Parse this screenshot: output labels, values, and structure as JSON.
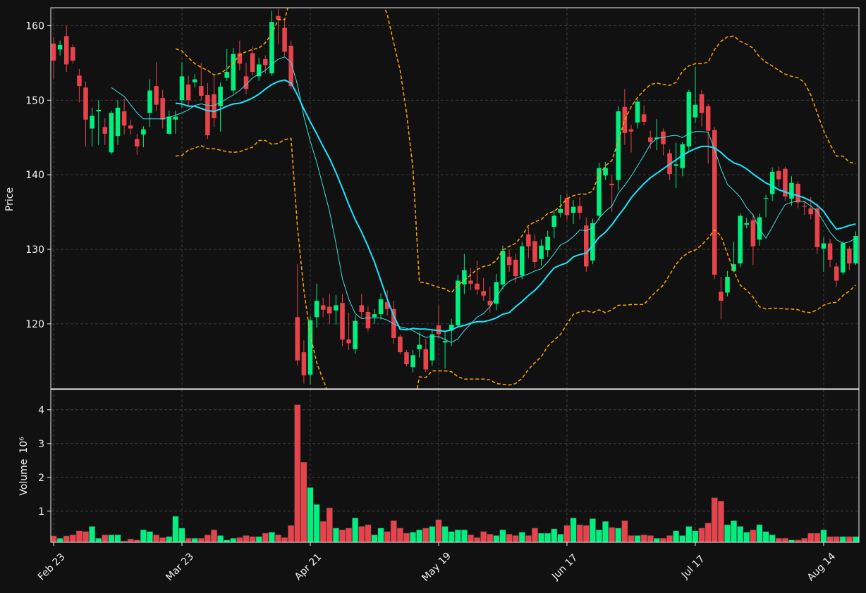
{
  "chart_data": {
    "type": "candlestick",
    "ylabel": "Price",
    "volume_ylabel": "Volume",
    "volume_offset_label": "10⁶",
    "up_color": "#00f07f",
    "down_color": "#e8434b",
    "grid": true,
    "xlim": [
      -0.44,
      125.5
    ],
    "ylim": [
      111.3,
      162.4
    ],
    "yticks": [
      120,
      130,
      140,
      150,
      160
    ],
    "volume_ylim": [
      0.08,
      4.6
    ],
    "volume_yticks": [
      1,
      2,
      3,
      4
    ],
    "categories": [
      "Feb 23",
      null,
      null,
      null,
      null,
      null,
      null,
      null,
      null,
      null,
      null,
      null,
      null,
      null,
      null,
      null,
      null,
      null,
      null,
      null,
      "Mar 23",
      null,
      null,
      null,
      null,
      null,
      null,
      null,
      null,
      null,
      null,
      null,
      null,
      null,
      null,
      null,
      null,
      null,
      null,
      null,
      "Apr 21",
      null,
      null,
      null,
      null,
      null,
      null,
      null,
      null,
      null,
      null,
      null,
      null,
      null,
      null,
      null,
      null,
      null,
      null,
      null,
      "May 19",
      null,
      null,
      null,
      null,
      null,
      null,
      null,
      null,
      null,
      null,
      null,
      null,
      null,
      null,
      null,
      null,
      null,
      null,
      null,
      "Jun 17",
      null,
      null,
      null,
      null,
      null,
      null,
      null,
      null,
      null,
      null,
      null,
      null,
      null,
      null,
      null,
      null,
      null,
      null,
      null,
      "Jul 17",
      null,
      null,
      null,
      null,
      null,
      null,
      null,
      null,
      null,
      null,
      null,
      null,
      null,
      null,
      null,
      null,
      null,
      null,
      null,
      "Aug 14",
      null,
      null,
      null,
      null,
      null
    ],
    "open": [
      157.6,
      156.8,
      158.6,
      157.1,
      153.3,
      151.7,
      146.2,
      148.5,
      146.4,
      143.0,
      145.2,
      148.5,
      146.6,
      144.8,
      145.4,
      148.3,
      151.9,
      150.3,
      145.5,
      147.4,
      150.0,
      152.1,
      152.4,
      151.9,
      150.7,
      150.8,
      149.2,
      153.0,
      151.3,
      156.3,
      153.2,
      156.3,
      153.2,
      155.5,
      153.6,
      161.3,
      159.7,
      157.3,
      120.9,
      116.2,
      113.2,
      120.9,
      122.5,
      122.3,
      121.8,
      122.8,
      117.9,
      116.6,
      122.5,
      121.6,
      120.9,
      121.3,
      122.9,
      122.0,
      118.3,
      116.2,
      114.2,
      116.6,
      116.6,
      115.1,
      119.8,
      117.5,
      119.1,
      119.8,
      125.3,
      125.8,
      125.4,
      124.4,
      123.1,
      122.7,
      125.3,
      129.0,
      128.6,
      126.5,
      132.0,
      131.1,
      128.7,
      129.9,
      133.0,
      134.9,
      136.9,
      134.9,
      135.8,
      133.2,
      128.5,
      134.5,
      139.9,
      138.8,
      139.3,
      149.1,
      146.1,
      147.0,
      148.1,
      145.0,
      144.8,
      145.8,
      142.9,
      141.2,
      140.9,
      143.8,
      147.7,
      150.8,
      149.2,
      146.0,
      124.3,
      124.2,
      127.1,
      128.1,
      133.3,
      133.9,
      131.3,
      136.8,
      137.4,
      140.5,
      140.8,
      136.8,
      138.8,
      135.8,
      135.5,
      135.5,
      130.1,
      130.8,
      127.7,
      126.9,
      130.1,
      128.1
    ],
    "high": [
      158.5,
      158,
      160,
      157.5,
      154.2,
      152.5,
      149,
      150,
      147.6,
      148.6,
      150,
      150.2,
      147.4,
      145.5,
      146.5,
      152.8,
      155.1,
      151.4,
      148.6,
      148.6,
      155.1,
      153.3,
      153.5,
      155,
      152.3,
      153.3,
      152.4,
      156.9,
      157,
      158,
      155,
      157.2,
      155.7,
      156,
      162,
      162.2,
      160.8,
      158,
      128,
      117.8,
      121,
      125.4,
      123.5,
      124,
      123.9,
      124,
      121.5,
      121.2,
      124,
      122.3,
      122,
      124.1,
      124.5,
      123.1,
      118.6,
      116.5,
      116.5,
      118.9,
      118,
      119.3,
      122.4,
      119,
      120.7,
      126.6,
      129.4,
      127.5,
      128.5,
      126.2,
      125,
      126.7,
      130.5,
      130,
      129.4,
      131,
      133,
      132,
      131.3,
      132.5,
      135.3,
      137.3,
      137.5,
      136.6,
      137,
      134.3,
      134.1,
      141.6,
      141.7,
      140,
      149.2,
      151.5,
      146.7,
      150.1,
      149.3,
      145.9,
      147.5,
      146.2,
      143.4,
      144.3,
      144.4,
      151.4,
      154.5,
      151.4,
      149.5,
      146.4,
      126.3,
      127.1,
      131,
      134.8,
      134.2,
      134.8,
      134.8,
      137.3,
      141,
      141.1,
      141.1,
      139.8,
      139.1,
      136.3,
      137,
      136.2,
      131.6,
      131.4,
      128.2,
      131.1,
      130.4,
      132.4
    ],
    "low": [
      152.8,
      156,
      153.8,
      154.9,
      149.7,
      143.8,
      143.8,
      144,
      144,
      142.7,
      144,
      145.4,
      145.4,
      142.7,
      143.7,
      146.4,
      148.5,
      146.2,
      145.4,
      145.5,
      149,
      149.1,
      151.7,
      150,
      144.8,
      146.4,
      145.8,
      152.6,
      150.9,
      154,
      150.8,
      153.3,
      152.6,
      153.6,
      153.3,
      157.5,
      155.9,
      151.5,
      114.4,
      112,
      111.9,
      119.5,
      120.9,
      120,
      119.9,
      117,
      116.5,
      116,
      120.7,
      119,
      120,
      120.6,
      121.1,
      117.3,
      115.9,
      114.3,
      113.5,
      115.5,
      113.5,
      114.4,
      118,
      114,
      117,
      119.5,
      124,
      124.5,
      123.9,
      123.1,
      121.5,
      121.8,
      124.6,
      127,
      125.5,
      126,
      128.8,
      127.5,
      127.8,
      129,
      131.5,
      134.3,
      134,
      133.4,
      134,
      127,
      128,
      133.8,
      139.3,
      135,
      137.9,
      144,
      143,
      146.2,
      146.6,
      143.5,
      143.3,
      142.6,
      139.3,
      138.2,
      139.8,
      143.2,
      147,
      146.5,
      141.5,
      126,
      120.6,
      123.7,
      126.9,
      127.6,
      132.8,
      127.9,
      130.5,
      134.3,
      136.5,
      138.4,
      136.5,
      135.9,
      135.5,
      134.6,
      134,
      129.4,
      127,
      127.6,
      125,
      126.6,
      127.2,
      127.9
    ],
    "close": [
      155.3,
      157.4,
      154.8,
      155.3,
      151.9,
      147.4,
      147.9,
      148.7,
      145.5,
      148.3,
      149.0,
      146.6,
      146.2,
      143.8,
      146.1,
      151.3,
      149.4,
      147.4,
      147.8,
      147.8,
      153.2,
      150.0,
      152.8,
      150.6,
      145.3,
      147.6,
      151.8,
      153.8,
      156.2,
      154.9,
      151.5,
      153.8,
      154.8,
      154.7,
      160.5,
      160.8,
      156.5,
      151.9,
      115.1,
      113.1,
      120.5,
      123.1,
      121.9,
      121.4,
      122.5,
      117.9,
      117.4,
      120.4,
      121.6,
      119.4,
      121.3,
      123.3,
      122.0,
      118.1,
      116.2,
      114.6,
      115.8,
      117.2,
      113.9,
      118.6,
      118.6,
      117.7,
      119.9,
      125.8,
      127.2,
      125.4,
      124.6,
      123.8,
      122.5,
      125.6,
      129.8,
      127.9,
      126.4,
      130.4,
      130.4,
      128.3,
      130.5,
      131.7,
      134.5,
      135.4,
      134.6,
      135.7,
      134.9,
      127.7,
      133.5,
      140.9,
      140.9,
      138.6,
      148.5,
      145.6,
      145.8,
      149.8,
      147.1,
      144.4,
      145.0,
      144.1,
      140.1,
      141.4,
      144.1,
      151.1,
      149.4,
      148.3,
      145.9,
      126.6,
      123.1,
      126.3,
      128.0,
      134.5,
      133.5,
      130.4,
      134.3,
      136.9,
      140.4,
      139.4,
      137.1,
      138.9,
      136.3,
      135.7,
      134.7,
      130.3,
      130.8,
      128.6,
      125.8,
      130.8,
      128.1,
      131.8
    ],
    "volume": [
      0.27,
      0.2,
      0.27,
      0.3,
      0.42,
      0.4,
      0.55,
      0.2,
      0.3,
      0.3,
      0.3,
      0.12,
      0.18,
      0.15,
      0.45,
      0.4,
      0.3,
      0.22,
      0.25,
      0.85,
      0.5,
      0.2,
      0.2,
      0.2,
      0.3,
      0.45,
      0.28,
      0.15,
      0.2,
      0.22,
      0.28,
      0.25,
      0.25,
      0.35,
      0.38,
      0.3,
      0.22,
      0.58,
      4.15,
      2.45,
      1.7,
      1.2,
      0.7,
      1.1,
      0.5,
      0.45,
      0.5,
      0.8,
      0.55,
      0.6,
      0.3,
      0.5,
      0.4,
      0.72,
      0.5,
      0.35,
      0.38,
      0.45,
      0.5,
      0.55,
      0.75,
      0.55,
      0.4,
      0.45,
      0.45,
      0.3,
      0.22,
      0.4,
      0.32,
      0.28,
      0.45,
      0.32,
      0.28,
      0.38,
      0.28,
      0.5,
      0.35,
      0.35,
      0.48,
      0.32,
      0.58,
      0.8,
      0.6,
      0.58,
      0.78,
      0.45,
      0.7,
      0.52,
      0.5,
      0.72,
      0.28,
      0.28,
      0.3,
      0.28,
      0.2,
      0.2,
      0.28,
      0.42,
      0.28,
      0.55,
      0.42,
      0.5,
      0.65,
      1.4,
      1.3,
      0.6,
      0.72,
      0.55,
      0.38,
      0.45,
      0.6,
      0.4,
      0.3,
      0.2,
      0.2,
      0.15,
      0.15,
      0.2,
      0.35,
      0.35,
      0.45,
      0.25,
      0.25,
      0.25,
      0.25,
      0.25
    ],
    "overlays": [
      {
        "color": "#40e0e0",
        "linewidth": 1,
        "dashed": false,
        "values": [
          null,
          null,
          null,
          null,
          null,
          null,
          null,
          null,
          null,
          151.7,
          151.1,
          150.5,
          149.4,
          148.3,
          147.5,
          147.5,
          147.5,
          147.5,
          147.7,
          148.0,
          148.3,
          148.7,
          149.3,
          149.5,
          149.3,
          149.3,
          149.7,
          150.2,
          150.7,
          151.3,
          152.1,
          153.0,
          153.5,
          154.0,
          154.8,
          155.5,
          155.8,
          155.1,
          152.1,
          147.8,
          144.5,
          141.7,
          138.4,
          135.1,
          130.8,
          126.1,
          123.3,
          121.4,
          120.7,
          120.8,
          120.8,
          120.8,
          120.5,
          120.0,
          119.6,
          119.4,
          119.1,
          118.6,
          118.2,
          118.3,
          118.3,
          117.9,
          117.5,
          118.0,
          119.1,
          120.0,
          120.9,
          121.4,
          122.3,
          123.6,
          124.9,
          125.7,
          126.1,
          126.4,
          126.7,
          127.1,
          127.4,
          128.3,
          129.4,
          130.6,
          131.0,
          131.7,
          132.6,
          132.5,
          132.9,
          134.2,
          135.1,
          135.8,
          137.5,
          138.6,
          139.8,
          141.2,
          142.6,
          144.1,
          144.9,
          145.0,
          145.2,
          145.3,
          145.0,
          145.5,
          145.8,
          145.8,
          145.7,
          143.4,
          140.8,
          138.7,
          137.9,
          137.0,
          135.6,
          134.6,
          132.7,
          131.5,
          133.0,
          134.6,
          136.0,
          136.3,
          136.5,
          136.4,
          135.8,
          135.1,
          133.7,
          132.3,
          131.3,
          130.8,
          131.0,
          131.5
        ]
      },
      {
        "color": "#19e6ff",
        "linewidth": 2,
        "dashed": false,
        "values": [
          null,
          null,
          null,
          null,
          null,
          null,
          null,
          null,
          null,
          null,
          null,
          null,
          null,
          null,
          null,
          null,
          null,
          null,
          null,
          149.6,
          149.5,
          149.2,
          149.2,
          148.9,
          148.6,
          148.5,
          148.8,
          149.2,
          149.5,
          149.6,
          149.9,
          150.3,
          150.8,
          151.5,
          152.1,
          152.5,
          152.7,
          152.3,
          150.7,
          148.8,
          147.1,
          145.5,
          143.8,
          142.2,
          140.3,
          138.2,
          136.0,
          134.0,
          132.3,
          130.4,
          128.3,
          125.8,
          123.3,
          121.1,
          119.3,
          119.2,
          119.4,
          119.3,
          119.3,
          119.2,
          119.1,
          119.0,
          119.2,
          119.6,
          119.8,
          120.1,
          120.3,
          120.3,
          120.5,
          120.8,
          121.3,
          121.5,
          122.3,
          123.0,
          123.8,
          124.5,
          125.4,
          126.5,
          127.5,
          127.9,
          128.2,
          129.0,
          129.3,
          129.5,
          130.5,
          131.6,
          132.3,
          133.3,
          134.5,
          135.6,
          136.9,
          137.9,
          138.8,
          139.6,
          140.2,
          140.8,
          141.4,
          142.0,
          142.6,
          143.1,
          143.5,
          143.8,
          143.8,
          143.6,
          143.0,
          142.2,
          141.6,
          141.3,
          140.8,
          140.1,
          139.5,
          138.9,
          138.5,
          138.0,
          137.7,
          137.4,
          137.2,
          136.9,
          136.5,
          135.9,
          135.1,
          133.8,
          132.7,
          132.9,
          133.2,
          133.4
        ]
      },
      {
        "color": "#ffa500",
        "linewidth": 1.5,
        "dashed": true,
        "values": [
          null,
          null,
          null,
          null,
          null,
          null,
          null,
          null,
          null,
          null,
          null,
          null,
          null,
          null,
          null,
          null,
          null,
          null,
          null,
          156.9,
          156.6,
          155.7,
          154.9,
          154.4,
          154.0,
          153.4,
          153.6,
          154.2,
          155.0,
          156.1,
          156.5,
          156.8,
          157.0,
          157.7,
          158.9,
          160.8,
          160.8,
          164.0,
          172.0,
          178.0,
          181.0,
          183.0,
          184.0,
          184.0,
          183.0,
          181.0,
          179.0,
          176.0,
          173.0,
          170.0,
          166.0,
          163.5,
          161.5,
          157.7,
          154.0,
          148.3,
          140.8,
          125.6,
          125.5,
          125.2,
          124.9,
          124.7,
          124.2,
          125.2,
          125.8,
          126.6,
          127.3,
          127.7,
          127.9,
          128.5,
          129.9,
          130.4,
          130.8,
          131.8,
          133.2,
          133.7,
          134.0,
          134.8,
          135.1,
          135.8,
          136.8,
          137.2,
          137.4,
          137.4,
          137.8,
          140.0,
          141.2,
          141.9,
          144.5,
          147.4,
          149.1,
          150.4,
          151.3,
          152.1,
          152.3,
          152.1,
          152.0,
          152.4,
          153.9,
          154.6,
          154.9,
          154.9,
          155.1,
          156.8,
          157.9,
          158.5,
          158.6,
          157.9,
          157.5,
          157.0,
          155.8,
          155.1,
          154.6,
          154.0,
          153.5,
          153.2,
          153.0,
          152.4,
          150.7,
          148.3,
          145.9,
          144.1,
          142.5,
          142.5,
          141.7,
          141.5
        ]
      },
      {
        "color": "#ffa500",
        "linewidth": 1.5,
        "dashed": true,
        "values": [
          null,
          null,
          null,
          null,
          null,
          null,
          null,
          null,
          null,
          null,
          null,
          null,
          null,
          null,
          null,
          null,
          null,
          null,
          null,
          142.5,
          142.6,
          143.3,
          143.6,
          143.9,
          143.5,
          143.5,
          143.3,
          143.1,
          143.0,
          143.1,
          143.4,
          143.7,
          144.6,
          144.6,
          144.1,
          144.2,
          144.7,
          144.9,
          133.0,
          124.5,
          118.5,
          114.8,
          112.5,
          110.3,
          108.0,
          105.0,
          102.0,
          100.0,
          98.0,
          96.5,
          95.5,
          95.0,
          95.0,
          96.0,
          98.0,
          101.0,
          108.0,
          112.9,
          112.8,
          113.7,
          113.7,
          113.7,
          113.6,
          112.9,
          112.6,
          112.6,
          112.6,
          112.6,
          112.5,
          112.0,
          111.9,
          111.8,
          112.0,
          112.7,
          113.9,
          114.8,
          115.6,
          117.0,
          117.8,
          118.6,
          120.0,
          121.3,
          121.6,
          121.8,
          121.5,
          121.9,
          121.5,
          121.9,
          122.5,
          122.5,
          122.6,
          122.6,
          122.6,
          123.6,
          124.4,
          125.2,
          126.6,
          128.0,
          129.0,
          129.6,
          129.9,
          130.6,
          131.5,
          132.6,
          131.8,
          129.4,
          127.1,
          125.2,
          124.5,
          123.6,
          122.3,
          122.0,
          122.1,
          122.1,
          122.0,
          122.0,
          121.9,
          121.6,
          121.5,
          121.9,
          122.5,
          122.8,
          122.9,
          123.8,
          124.4,
          125.2
        ]
      }
    ]
  }
}
